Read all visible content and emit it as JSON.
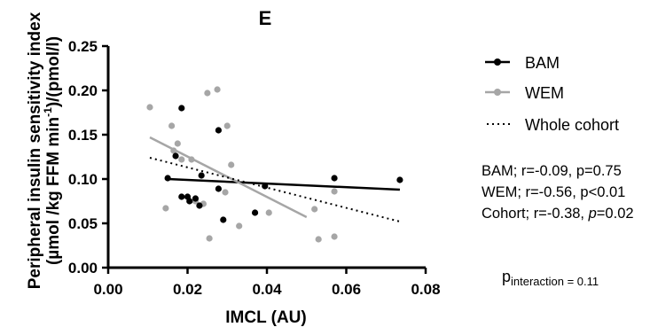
{
  "chart_data": {
    "type": "scatter",
    "panel_label": "E",
    "xlabel": "IMCL (AU)",
    "ylabel_line1": "Peripheral insulin sensitivity index",
    "ylabel_line2_prefix": "(µmol /kg FFM min",
    "ylabel_line2_sup": "-1",
    "ylabel_line2_suffix": ")/(pmol/l)",
    "xlim": [
      0.0,
      0.08
    ],
    "ylim": [
      0.0,
      0.25
    ],
    "x_ticks": [
      {
        "value": 0.0,
        "label": "0.00"
      },
      {
        "value": 0.02,
        "label": "0.02"
      },
      {
        "value": 0.04,
        "label": "0.04"
      },
      {
        "value": 0.06,
        "label": "0.06"
      },
      {
        "value": 0.08,
        "label": "0.08"
      }
    ],
    "y_ticks": [
      {
        "value": 0.0,
        "label": "0.00"
      },
      {
        "value": 0.05,
        "label": "0.05"
      },
      {
        "value": 0.1,
        "label": "0.10"
      },
      {
        "value": 0.15,
        "label": "0.15"
      },
      {
        "value": 0.2,
        "label": "0.20"
      },
      {
        "value": 0.25,
        "label": "0.25"
      }
    ],
    "grid": false,
    "legend_position": "right",
    "series": [
      {
        "name": "BAM",
        "color": "#000000",
        "points": [
          [
            0.015,
            0.101
          ],
          [
            0.017,
            0.126
          ],
          [
            0.0185,
            0.18
          ],
          [
            0.0185,
            0.08
          ],
          [
            0.02,
            0.08
          ],
          [
            0.0205,
            0.075
          ],
          [
            0.022,
            0.078
          ],
          [
            0.023,
            0.07
          ],
          [
            0.0235,
            0.104
          ],
          [
            0.0278,
            0.155
          ],
          [
            0.0278,
            0.089
          ],
          [
            0.029,
            0.054
          ],
          [
            0.037,
            0.062
          ],
          [
            0.0395,
            0.092
          ],
          [
            0.057,
            0.101
          ],
          [
            0.0735,
            0.099
          ]
        ],
        "fit": [
          [
            0.015,
            0.1
          ],
          [
            0.0735,
            0.088
          ]
        ]
      },
      {
        "name": "WEM",
        "color": "#a6a6a6",
        "points": [
          [
            0.0105,
            0.181
          ],
          [
            0.0145,
            0.067
          ],
          [
            0.016,
            0.16
          ],
          [
            0.0165,
            0.132
          ],
          [
            0.0175,
            0.14
          ],
          [
            0.0185,
            0.122
          ],
          [
            0.021,
            0.122
          ],
          [
            0.022,
            0.075
          ],
          [
            0.024,
            0.072
          ],
          [
            0.025,
            0.197
          ],
          [
            0.0255,
            0.033
          ],
          [
            0.0275,
            0.201
          ],
          [
            0.0295,
            0.085
          ],
          [
            0.03,
            0.16
          ],
          [
            0.031,
            0.116
          ],
          [
            0.033,
            0.047
          ],
          [
            0.0405,
            0.062
          ],
          [
            0.052,
            0.066
          ],
          [
            0.053,
            0.032
          ],
          [
            0.057,
            0.086
          ],
          [
            0.057,
            0.035
          ]
        ],
        "fit": [
          [
            0.0105,
            0.147
          ],
          [
            0.05,
            0.057
          ]
        ]
      },
      {
        "name": "Whole cohort",
        "color": "#000000",
        "line_style": "dotted",
        "points": [],
        "fit": [
          [
            0.0105,
            0.124
          ],
          [
            0.0735,
            0.052
          ]
        ]
      }
    ],
    "stats": [
      {
        "text": "BAM; r=-0.09, p=0.75"
      },
      {
        "text": "WEM; r=-0.56, p<0.01"
      },
      {
        "prefix": "Cohort; r=-0.38, ",
        "p_italic": "p",
        "suffix": "=0.02"
      }
    ],
    "interaction": {
      "p": "p",
      "sub": "interaction = 0.11"
    }
  }
}
